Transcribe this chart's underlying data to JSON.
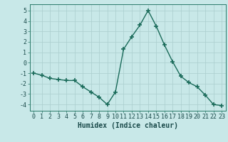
{
  "x": [
    0,
    1,
    2,
    3,
    4,
    5,
    6,
    7,
    8,
    9,
    10,
    11,
    12,
    13,
    14,
    15,
    16,
    17,
    18,
    19,
    20,
    21,
    22,
    23
  ],
  "y": [
    -1.0,
    -1.2,
    -1.5,
    -1.6,
    -1.7,
    -1.7,
    -2.3,
    -2.8,
    -3.3,
    -4.0,
    -2.8,
    1.3,
    2.5,
    3.6,
    5.0,
    3.5,
    1.7,
    0.1,
    -1.3,
    -1.9,
    -2.3,
    -3.1,
    -4.0,
    -4.1
  ],
  "line_color": "#1a6b5a",
  "marker": "+",
  "marker_size": 4,
  "marker_lw": 1.2,
  "bg_color": "#c8e8e8",
  "grid_color": "#aacece",
  "xlabel": "Humidex (Indice chaleur)",
  "xlabel_fontsize": 7,
  "tick_fontsize": 6,
  "ylim": [
    -4.6,
    5.6
  ],
  "xlim": [
    -0.5,
    23.5
  ],
  "yticks": [
    -4,
    -3,
    -2,
    -1,
    0,
    1,
    2,
    3,
    4,
    5
  ],
  "xticks": [
    0,
    1,
    2,
    3,
    4,
    5,
    6,
    7,
    8,
    9,
    10,
    11,
    12,
    13,
    14,
    15,
    16,
    17,
    18,
    19,
    20,
    21,
    22,
    23
  ],
  "line_width": 1.0,
  "spine_color": "#2a7a6a"
}
